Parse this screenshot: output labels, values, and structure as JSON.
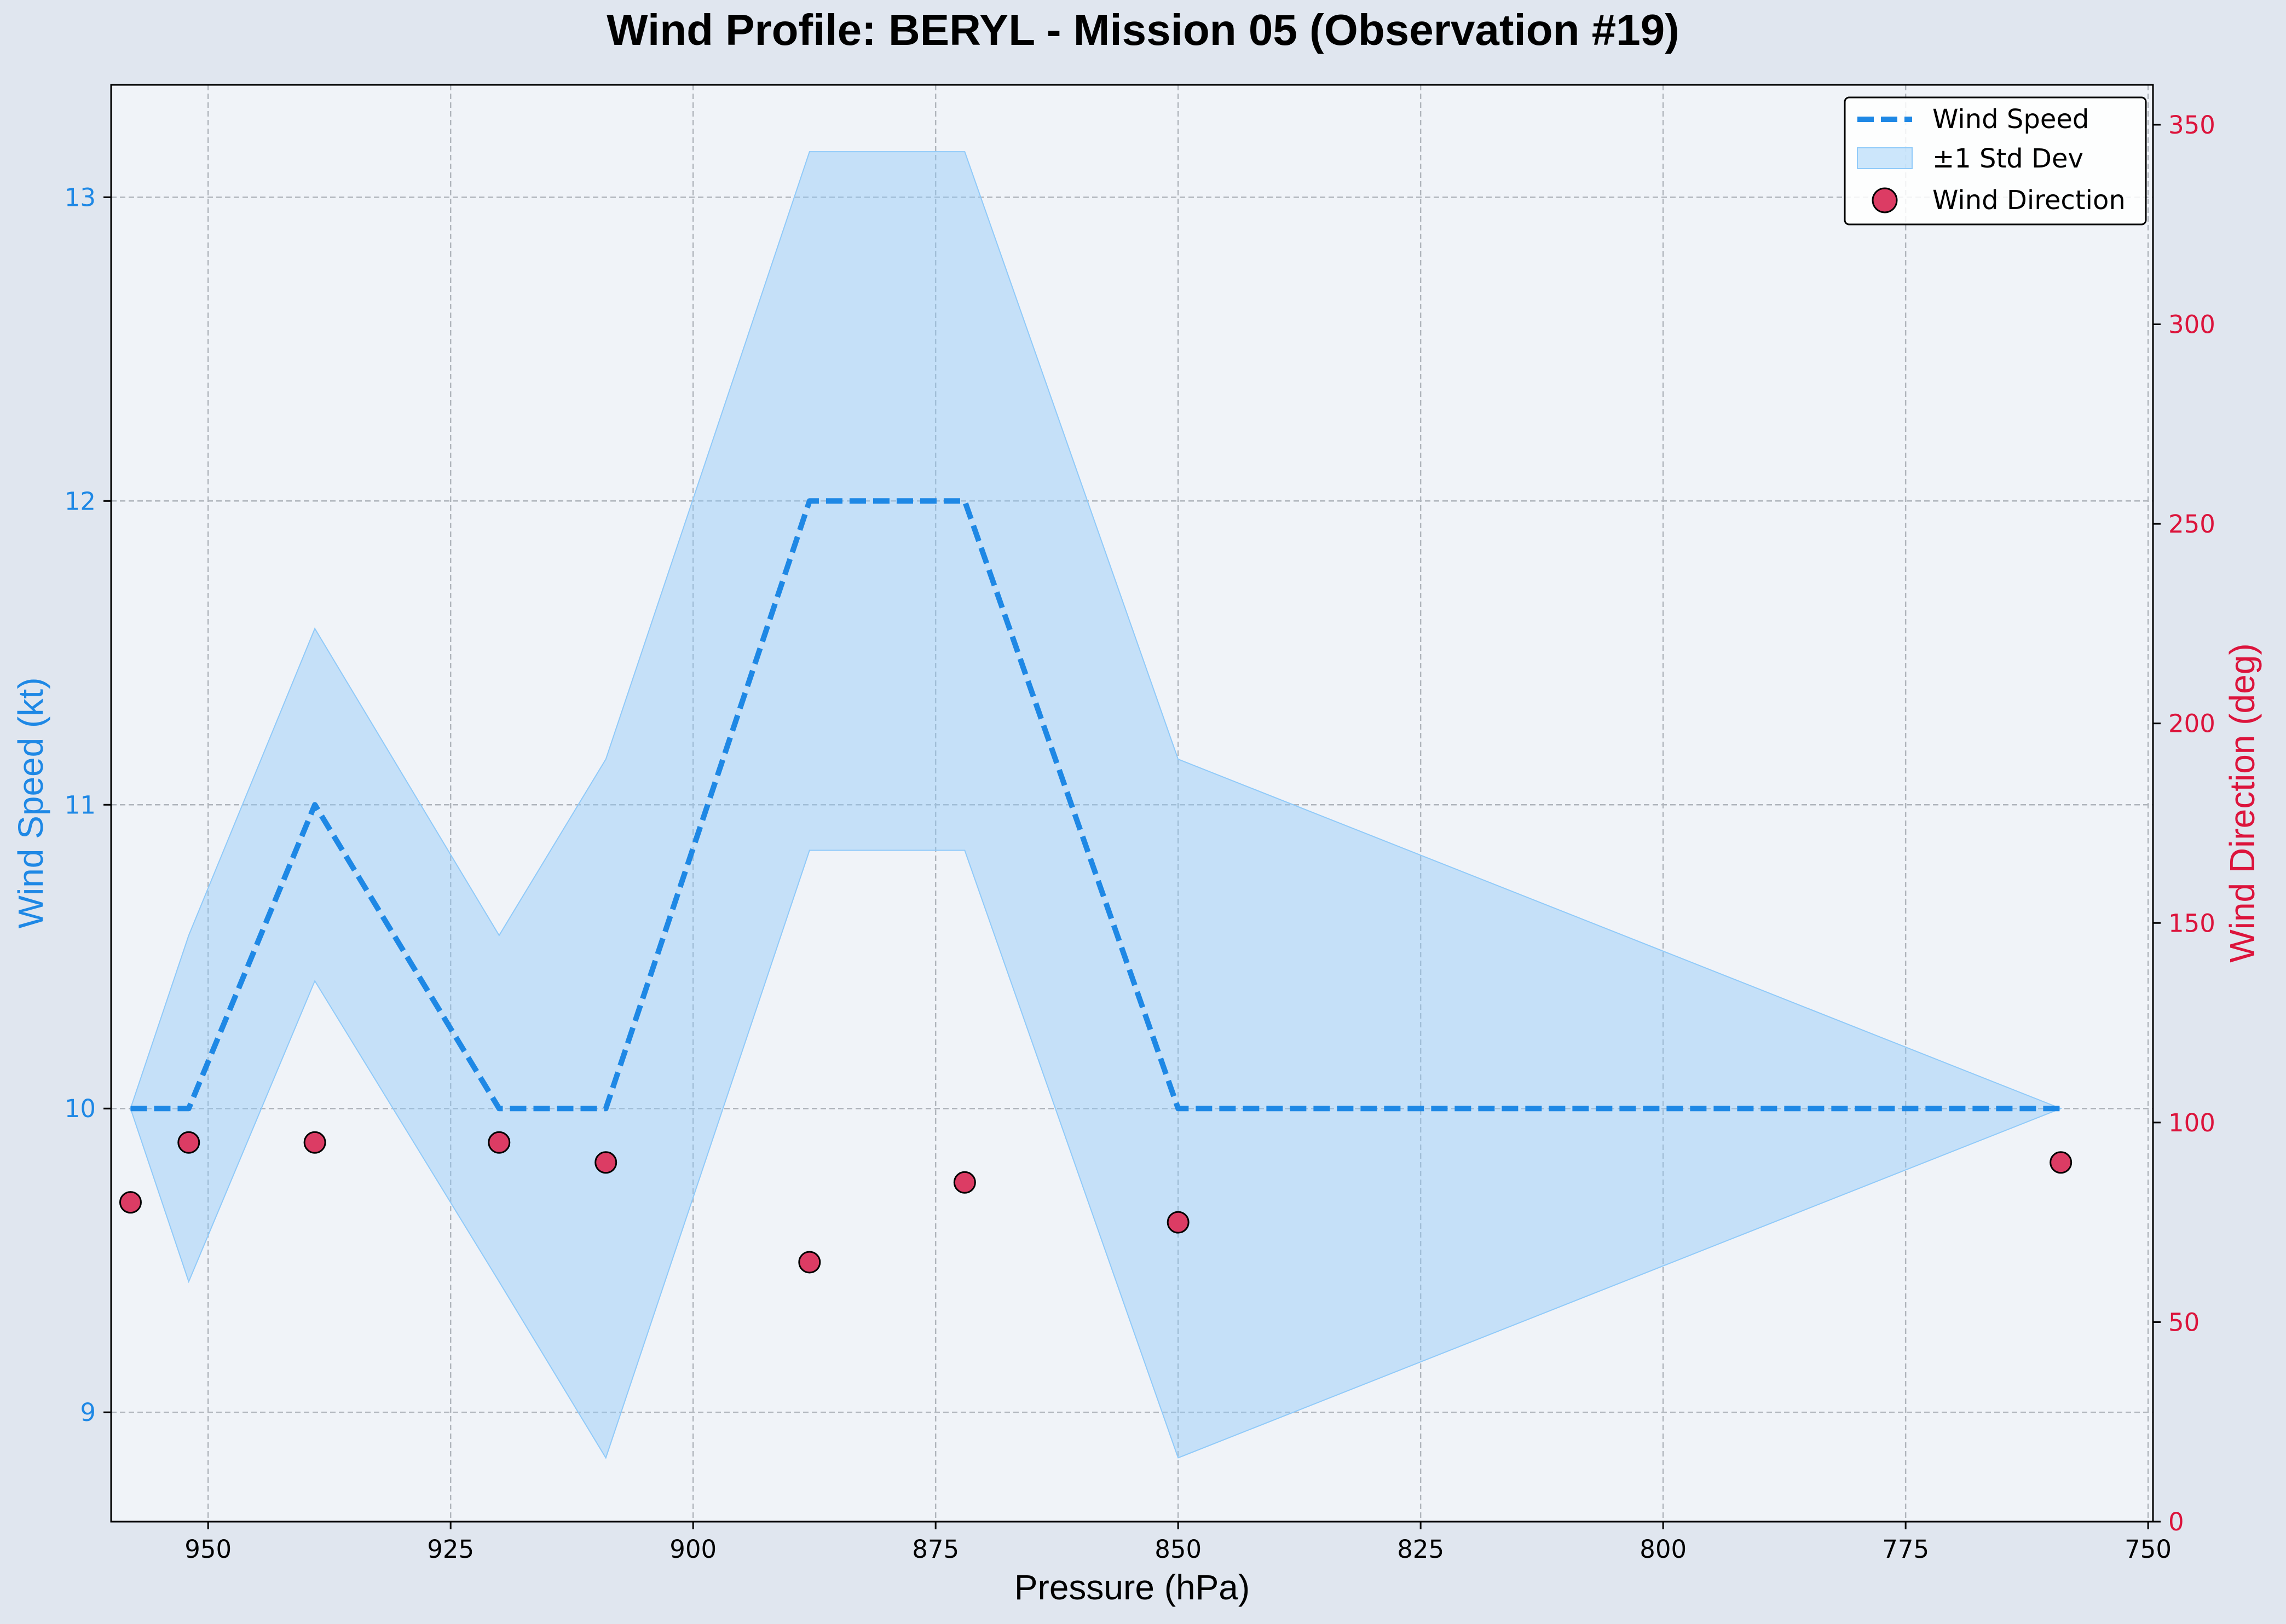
{
  "chart_data": {
    "type": "line",
    "title": "Wind Profile: BERYL - Mission 05 (Observation #19)",
    "xlabel": "Pressure (hPa)",
    "ylabel": "Wind Speed (kt)",
    "y2label": "Wind Direction (deg)",
    "xlim": [
      960,
      749.5
    ],
    "ylim": [
      8.64,
      13.37
    ],
    "y2lim": [
      0,
      360
    ],
    "x_inverted": true,
    "grid": true,
    "legend_position": "top-right",
    "xticks": [
      950,
      925,
      900,
      875,
      850,
      825,
      800,
      775,
      750
    ],
    "yticks": [
      9,
      10,
      11,
      12,
      13
    ],
    "y2ticks": [
      0,
      50,
      100,
      150,
      200,
      250,
      300,
      350
    ],
    "series": [
      {
        "name": "Wind Speed",
        "kind": "line",
        "style": "dashed",
        "color": "#1e88e5",
        "axis": "left",
        "x": [
          958,
          952,
          939,
          920,
          909,
          888,
          872,
          850,
          759
        ],
        "values": [
          10,
          10,
          11,
          10,
          10,
          12,
          12,
          10,
          10
        ]
      },
      {
        "name": "±1 Std Dev",
        "kind": "band",
        "color": "#90caf9",
        "axis": "left",
        "x": [
          958,
          952,
          939,
          920,
          909,
          888,
          872,
          850,
          759
        ],
        "lower": [
          10.0,
          9.43,
          10.42,
          9.43,
          8.85,
          10.85,
          10.85,
          8.85,
          10.0
        ],
        "upper": [
          10.0,
          10.57,
          11.58,
          10.57,
          11.15,
          13.15,
          13.15,
          11.15,
          10.0
        ]
      },
      {
        "name": "Wind Direction",
        "kind": "scatter",
        "color": "#dc3c64",
        "edge_color": "#000000",
        "axis": "right",
        "x": [
          958,
          952,
          939,
          920,
          909,
          888,
          872,
          850,
          759
        ],
        "values": [
          80,
          95,
          95,
          95,
          90,
          65,
          85,
          75,
          90
        ]
      }
    ]
  },
  "colors": {
    "left_axis": "#1e88e5",
    "right_axis": "#dc143c",
    "plot_bg": "#f0f3f8",
    "figure_bg": "#e0e6ef"
  }
}
